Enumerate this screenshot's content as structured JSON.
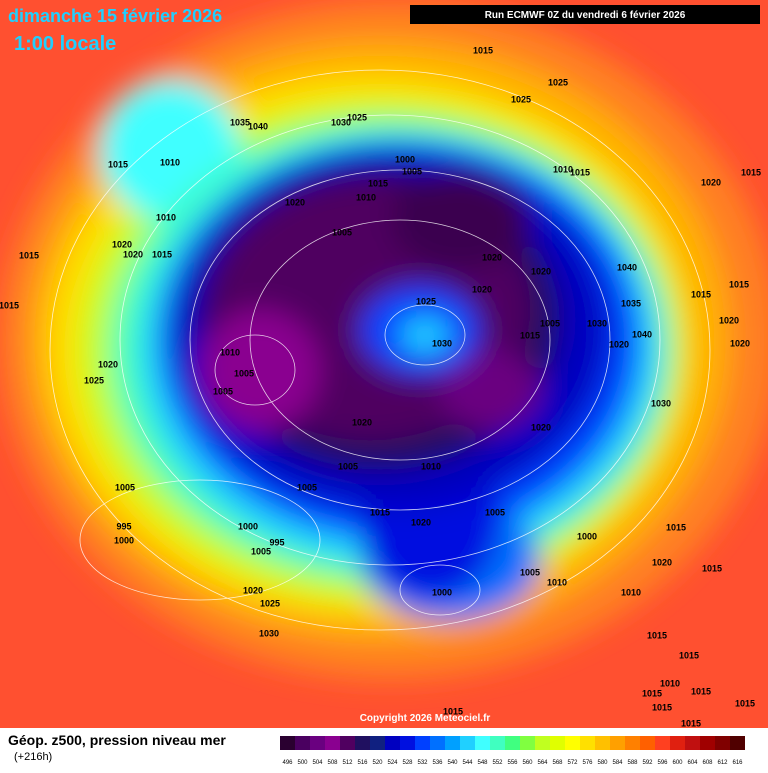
{
  "header": {
    "title": "dimanche 15 février 2026",
    "subtitle": "1:00 locale",
    "run": "Run ECMWF 0Z du vendredi 6 février 2026"
  },
  "copyright": "Copyright 2026 Meteociel.fr",
  "legend": {
    "title": "Géop. z500, pression niveau mer",
    "lead": "(+216h)",
    "labels": [
      "496",
      "500",
      "504",
      "508",
      "512",
      "516",
      "520",
      "524",
      "528",
      "532",
      "536",
      "540",
      "544",
      "548",
      "552",
      "556",
      "560",
      "564",
      "568",
      "572",
      "576",
      "580",
      "584",
      "588",
      "592",
      "596",
      "600",
      "604",
      "608",
      "612",
      "616"
    ],
    "colors": [
      "#2a0030",
      "#4a0060",
      "#6a0080",
      "#8a0090",
      "#500060",
      "#201060",
      "#102080",
      "#0000c0",
      "#0010e0",
      "#0040ff",
      "#0070ff",
      "#00a0ff",
      "#20d0ff",
      "#40ffff",
      "#40ffc0",
      "#40ff80",
      "#80ff40",
      "#c0ff20",
      "#e0ff00",
      "#ffff00",
      "#ffe000",
      "#ffc000",
      "#ffa000",
      "#ff8000",
      "#ff6000",
      "#ff4020",
      "#e02010",
      "#c01010",
      "#a00000",
      "#800000",
      "#500000"
    ]
  },
  "isobar_labels": [
    "1015",
    "1025",
    "1025",
    "1035",
    "1040",
    "1030",
    "1025",
    "1015",
    "1010",
    "1000",
    "1005",
    "1010",
    "1015",
    "1020",
    "1015",
    "1015",
    "1020",
    "1010",
    "1010",
    "1005",
    "1020",
    "1020",
    "1015",
    "1015",
    "1020",
    "1020",
    "1040",
    "1020",
    "1025",
    "1015",
    "1015",
    "1035",
    "1015",
    "1005",
    "1030",
    "1020",
    "1015",
    "1040",
    "1030",
    "1020",
    "1020",
    "1010",
    "1020",
    "1005",
    "1025",
    "1005",
    "1030",
    "1020",
    "1020",
    "1005",
    "1010",
    "1005",
    "1005",
    "1015",
    "1020",
    "1005",
    "1000",
    "995",
    "1000",
    "995",
    "1005",
    "1000",
    "1015",
    "1020",
    "1015",
    "1005",
    "1010",
    "1010",
    "1000",
    "1020",
    "1025",
    "1030",
    "1015",
    "1015",
    "1010",
    "1015",
    "1015",
    "1015",
    "1015",
    "1015",
    "1015"
  ]
}
